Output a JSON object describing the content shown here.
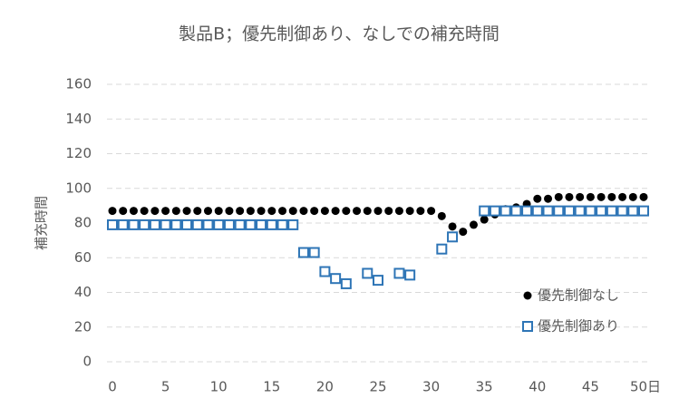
{
  "chart_data": {
    "type": "scatter",
    "title": "製品B；優先制御あり、なしでの補充時間",
    "y_label": "補充時間",
    "x": [
      0,
      1,
      2,
      3,
      4,
      5,
      6,
      7,
      8,
      9,
      10,
      11,
      12,
      13,
      14,
      15,
      16,
      17,
      18,
      19,
      20,
      21,
      22,
      23,
      24,
      25,
      26,
      27,
      28,
      29,
      30,
      31,
      32,
      33,
      34,
      35,
      36,
      37,
      38,
      39,
      40,
      41,
      42,
      43,
      44,
      45,
      46,
      47,
      48,
      49,
      50
    ],
    "series": [
      {
        "name": "優先制御なし",
        "color": "#000000",
        "marker": "circle",
        "values": [
          87,
          87,
          87,
          87,
          87,
          87,
          87,
          87,
          87,
          87,
          87,
          87,
          87,
          87,
          87,
          87,
          87,
          87,
          87,
          87,
          87,
          87,
          87,
          87,
          87,
          87,
          87,
          87,
          87,
          87,
          87,
          84,
          78,
          75,
          79,
          82,
          85,
          88,
          89,
          91,
          94,
          94,
          95,
          95,
          95,
          95,
          95,
          95,
          95,
          95,
          95
        ]
      },
      {
        "name": "優先制御あり",
        "color": "#2e75b6",
        "marker": "square",
        "values": [
          79,
          79,
          79,
          79,
          79,
          79,
          79,
          79,
          79,
          79,
          79,
          79,
          79,
          79,
          79,
          79,
          79,
          79,
          63,
          63,
          52,
          48,
          45,
          null,
          51,
          47,
          null,
          51,
          50,
          null,
          null,
          65,
          72,
          null,
          null,
          87,
          87,
          87,
          87,
          87,
          87,
          87,
          87,
          87,
          87,
          87,
          87,
          87,
          87,
          87,
          87
        ]
      }
    ],
    "xlim": [
      0,
      50
    ],
    "xticks": [
      0,
      5,
      10,
      15,
      20,
      25,
      30,
      35,
      40,
      45,
      {
        "value": 50,
        "label": "50日"
      }
    ],
    "ylim": [
      0,
      160
    ],
    "yticks": [
      0,
      20,
      40,
      60,
      80,
      100,
      120,
      140,
      160
    ],
    "grid": true,
    "legend": "lower right"
  }
}
